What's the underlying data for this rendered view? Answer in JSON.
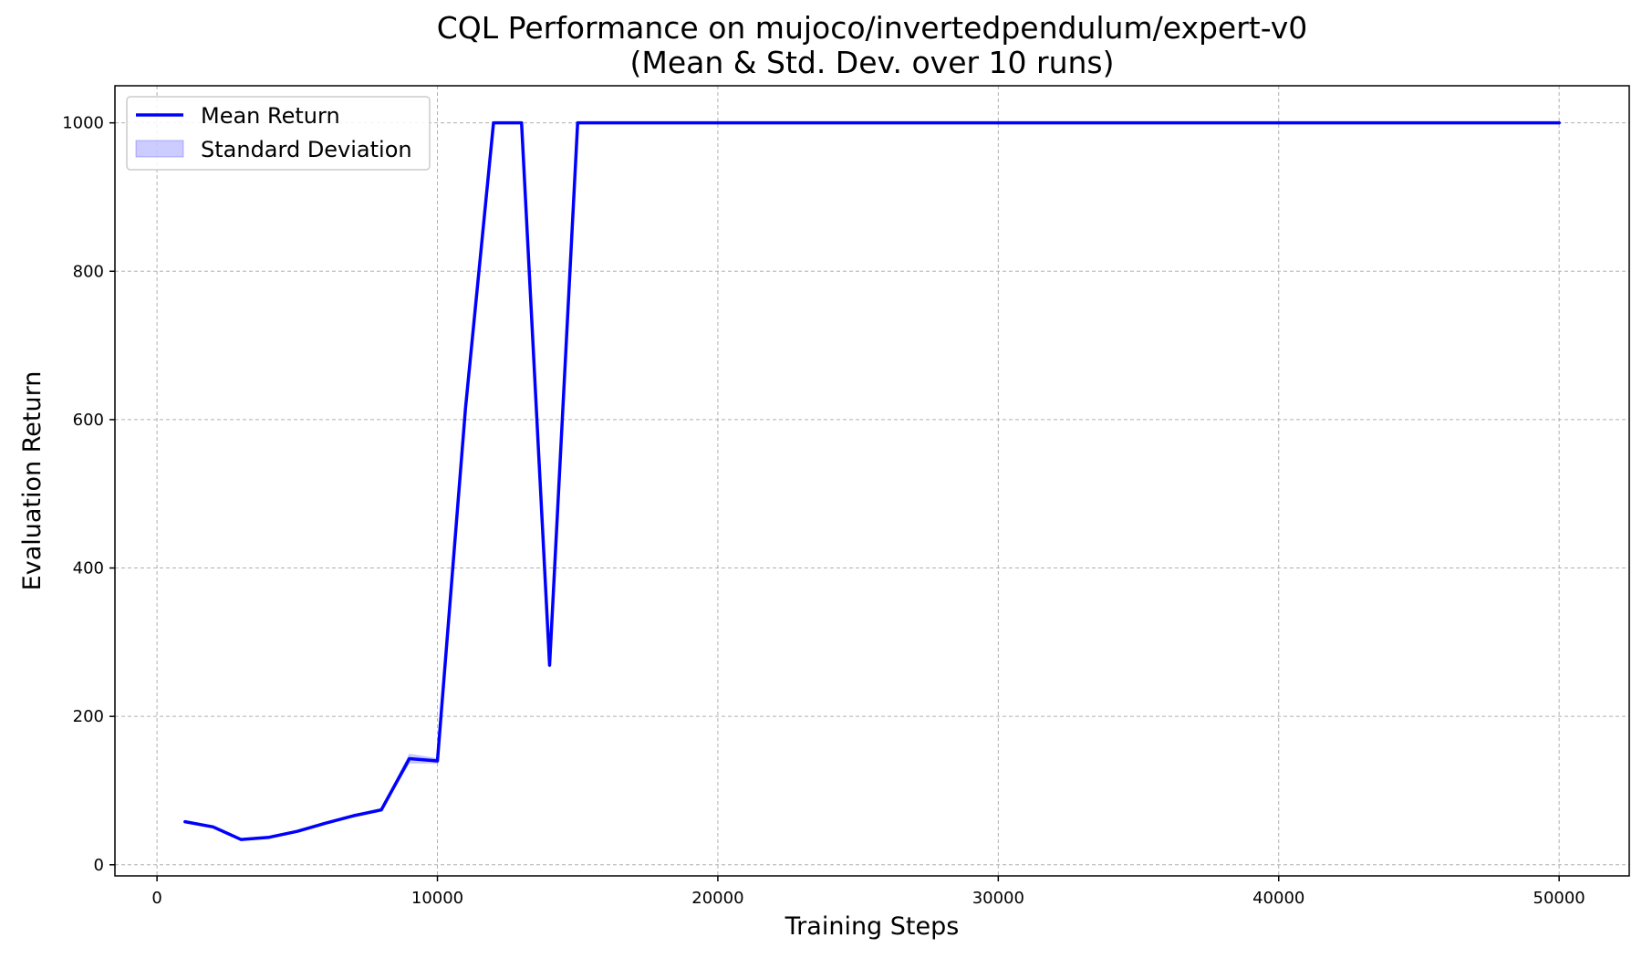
{
  "chart_data": {
    "type": "line",
    "title": "CQL Performance on mujoco/invertedpendulum/expert-v0",
    "subtitle": "(Mean & Std. Dev. over 10 runs)",
    "xlabel": "Training Steps",
    "ylabel": "Evaluation Return",
    "xlim": [
      -1500,
      52500
    ],
    "ylim": [
      -15,
      1050
    ],
    "xticks": [
      0,
      10000,
      20000,
      30000,
      40000,
      50000
    ],
    "yticks": [
      0,
      200,
      400,
      600,
      800,
      1000
    ],
    "grid": true,
    "legend_position": "top-left",
    "series": [
      {
        "name": "Mean Return",
        "color": "#0000ff",
        "x": [
          1000,
          2000,
          3000,
          4000,
          5000,
          6000,
          7000,
          8000,
          9000,
          10000,
          11000,
          12000,
          13000,
          14000,
          15000,
          16000,
          17000,
          18000,
          19000,
          20000,
          21000,
          22000,
          23000,
          24000,
          25000,
          26000,
          27000,
          28000,
          29000,
          30000,
          31000,
          32000,
          33000,
          34000,
          35000,
          36000,
          37000,
          38000,
          39000,
          40000,
          41000,
          42000,
          43000,
          44000,
          45000,
          46000,
          47000,
          48000,
          49000,
          50000
        ],
        "y": [
          58,
          51,
          34,
          37,
          45,
          56,
          66,
          74,
          143,
          140,
          615,
          1000,
          1000,
          269,
          1000,
          1000,
          1000,
          1000,
          1000,
          1000,
          1000,
          1000,
          1000,
          1000,
          1000,
          1000,
          1000,
          1000,
          1000,
          1000,
          1000,
          1000,
          1000,
          1000,
          1000,
          1000,
          1000,
          1000,
          1000,
          1000,
          1000,
          1000,
          1000,
          1000,
          1000,
          1000,
          1000,
          1000,
          1000,
          1000
        ]
      },
      {
        "name": "Standard Deviation",
        "color": "#0000ff",
        "x": [
          1000,
          2000,
          3000,
          4000,
          5000,
          6000,
          7000,
          8000,
          9000,
          10000,
          11000,
          12000,
          13000,
          14000,
          15000,
          16000,
          17000,
          18000,
          19000,
          20000,
          21000,
          22000,
          23000,
          24000,
          25000,
          26000,
          27000,
          28000,
          29000,
          30000,
          31000,
          32000,
          33000,
          34000,
          35000,
          36000,
          37000,
          38000,
          39000,
          40000,
          41000,
          42000,
          43000,
          44000,
          45000,
          46000,
          47000,
          48000,
          49000,
          50000
        ],
        "lower": [
          57,
          50,
          33,
          36,
          44,
          55,
          65,
          73,
          137,
          137,
          612,
          1000,
          1000,
          266,
          1000,
          1000,
          1000,
          1000,
          1000,
          1000,
          1000,
          1000,
          1000,
          1000,
          1000,
          1000,
          1000,
          1000,
          1000,
          1000,
          1000,
          1000,
          1000,
          1000,
          1000,
          1000,
          1000,
          1000,
          1000,
          1000,
          1000,
          1000,
          1000,
          1000,
          1000,
          1000,
          1000,
          1000,
          1000,
          1000
        ],
        "upper": [
          59,
          52,
          35,
          38,
          46,
          57,
          67,
          75,
          149,
          143,
          618,
          1000,
          1000,
          272,
          1000,
          1000,
          1000,
          1000,
          1000,
          1000,
          1000,
          1000,
          1000,
          1000,
          1000,
          1000,
          1000,
          1000,
          1000,
          1000,
          1000,
          1000,
          1000,
          1000,
          1000,
          1000,
          1000,
          1000,
          1000,
          1000,
          1000,
          1000,
          1000,
          1000,
          1000,
          1000,
          1000,
          1000,
          1000,
          1000
        ]
      }
    ]
  }
}
